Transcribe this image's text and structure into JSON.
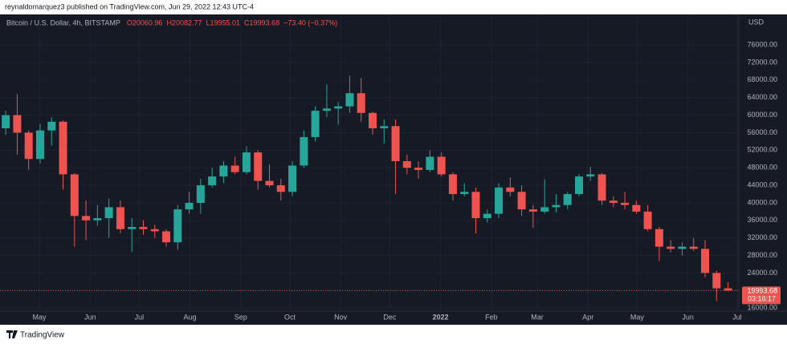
{
  "page": {
    "published": "reynaldomarquez3 published on TradingView.com, Jun 29, 2022 12:43 UTC-4",
    "brand": "TradingView"
  },
  "chart_data": {
    "type": "candlestick",
    "symbol": "Bitcoin / U.S. Dollar, 4h, BITSTAMP",
    "ohlc_text": [
      "O20060.96",
      "H20082.77",
      "L19955.01",
      "C19993.68",
      "−73.40 (−0.37%)"
    ],
    "currency": "USD",
    "countdown": "03:16:17",
    "up_color": "#26a69a",
    "down_color": "#ef5350",
    "candles": [
      [
        57000,
        61000,
        55500,
        60000
      ],
      [
        60000,
        64800,
        51000,
        56000
      ],
      [
        56000,
        56500,
        47500,
        50000
      ],
      [
        50000,
        58000,
        49000,
        56500
      ],
      [
        56500,
        59500,
        53000,
        58500
      ],
      [
        58500,
        58800,
        43000,
        46500
      ],
      [
        46500,
        46800,
        30000,
        37000
      ],
      [
        37000,
        40500,
        31500,
        36000
      ],
      [
        36000,
        39500,
        34800,
        36500
      ],
      [
        36500,
        41000,
        32000,
        39000
      ],
      [
        39000,
        40500,
        33000,
        34000
      ],
      [
        34000,
        36500,
        28800,
        34500
      ],
      [
        34500,
        36000,
        32700,
        34000
      ],
      [
        34000,
        35000,
        32000,
        33500
      ],
      [
        33500,
        34000,
        30000,
        31000
      ],
      [
        31000,
        39500,
        29300,
        38500
      ],
      [
        38500,
        42500,
        37500,
        40000
      ],
      [
        40000,
        45500,
        37500,
        44000
      ],
      [
        44000,
        48000,
        43500,
        46000
      ],
      [
        46000,
        49500,
        44500,
        48500
      ],
      [
        48500,
        50500,
        46500,
        47000
      ],
      [
        47000,
        52900,
        46500,
        51500
      ],
      [
        51500,
        52000,
        43000,
        45000
      ],
      [
        45000,
        48800,
        43500,
        44000
      ],
      [
        44000,
        45500,
        40500,
        42500
      ],
      [
        42500,
        49500,
        41500,
        48500
      ],
      [
        48500,
        56500,
        48000,
        55000
      ],
      [
        55000,
        62000,
        54000,
        61000
      ],
      [
        61000,
        67000,
        59500,
        61500
      ],
      [
        61500,
        63000,
        57800,
        62000
      ],
      [
        62000,
        69000,
        60500,
        65000
      ],
      [
        65000,
        68500,
        58500,
        60500
      ],
      [
        60500,
        60800,
        55500,
        57000
      ],
      [
        57000,
        59000,
        53500,
        57500
      ],
      [
        57500,
        59000,
        42000,
        49500
      ],
      [
        49500,
        51000,
        46500,
        48000
      ],
      [
        48000,
        49500,
        45500,
        47500
      ],
      [
        47500,
        52000,
        47000,
        50500
      ],
      [
        50500,
        51500,
        46000,
        46500
      ],
      [
        46500,
        47000,
        40500,
        42000
      ],
      [
        42000,
        44500,
        41500,
        42500
      ],
      [
        42500,
        43500,
        33000,
        36500
      ],
      [
        36500,
        38500,
        35500,
        37500
      ],
      [
        37500,
        44500,
        36500,
        43500
      ],
      [
        43500,
        45800,
        41500,
        42500
      ],
      [
        42500,
        44000,
        37000,
        38500
      ],
      [
        38500,
        39500,
        34300,
        38000
      ],
      [
        38000,
        45400,
        37500,
        39000
      ],
      [
        39000,
        42000,
        37800,
        39500
      ],
      [
        39500,
        42500,
        38500,
        42000
      ],
      [
        42000,
        46500,
        41500,
        46000
      ],
      [
        46000,
        48200,
        45000,
        46500
      ],
      [
        46500,
        46800,
        39500,
        40500
      ],
      [
        40500,
        41500,
        39000,
        40000
      ],
      [
        40000,
        42500,
        38500,
        39500
      ],
      [
        39500,
        40500,
        37500,
        38000
      ],
      [
        38000,
        39500,
        33500,
        34000
      ],
      [
        34000,
        34500,
        26700,
        30000
      ],
      [
        30000,
        31500,
        28700,
        29500
      ],
      [
        29500,
        31000,
        28000,
        30000
      ],
      [
        30000,
        32000,
        29000,
        29500
      ],
      [
        29500,
        31500,
        23000,
        24000
      ],
      [
        24000,
        24500,
        17600,
        20500
      ],
      [
        20500,
        21900,
        19800,
        19993.68
      ]
    ],
    "xlim": [
      0,
      64.3
    ],
    "xticks": [
      {
        "value": 3.43,
        "label": "May"
      },
      {
        "value": 7.86,
        "label": "Jun"
      },
      {
        "value": 12.14,
        "label": "Jul"
      },
      {
        "value": 16.57,
        "label": "Aug"
      },
      {
        "value": 21,
        "label": "Sep"
      },
      {
        "value": 25.29,
        "label": "Oct"
      },
      {
        "value": 29.71,
        "label": "Nov"
      },
      {
        "value": 34,
        "label": "Dec"
      },
      {
        "value": 38.43,
        "label": "2022"
      },
      {
        "value": 42.86,
        "label": "Feb"
      },
      {
        "value": 46.86,
        "label": "Mar"
      },
      {
        "value": 51.29,
        "label": "Apr"
      },
      {
        "value": 55.57,
        "label": "May"
      },
      {
        "value": 60,
        "label": "Jun"
      },
      {
        "value": 64.29,
        "label": "Jul"
      }
    ],
    "ylim": [
      15300,
      82600
    ],
    "yticks": [
      {
        "value": 16000,
        "label": "16000.00"
      },
      {
        "value": 20000,
        "label": "20000.00"
      },
      {
        "value": 24000,
        "label": "24000.00"
      },
      {
        "value": 28000,
        "label": "28000.00"
      },
      {
        "value": 32000,
        "label": "32000.00"
      },
      {
        "value": 36000,
        "label": "36000.00"
      },
      {
        "value": 40000,
        "label": "40000.00"
      },
      {
        "value": 44000,
        "label": "44000.00"
      },
      {
        "value": 48000,
        "label": "48000.00"
      },
      {
        "value": 52000,
        "label": "52000.00"
      },
      {
        "value": 56000,
        "label": "56000.00"
      },
      {
        "value": 60000,
        "label": "60000.00"
      },
      {
        "value": 64000,
        "label": "64000.00"
      },
      {
        "value": 68000,
        "label": "68000.00"
      },
      {
        "value": 72000,
        "label": "72000.00"
      },
      {
        "value": 76000,
        "label": "76000.00"
      }
    ],
    "grid": true
  }
}
